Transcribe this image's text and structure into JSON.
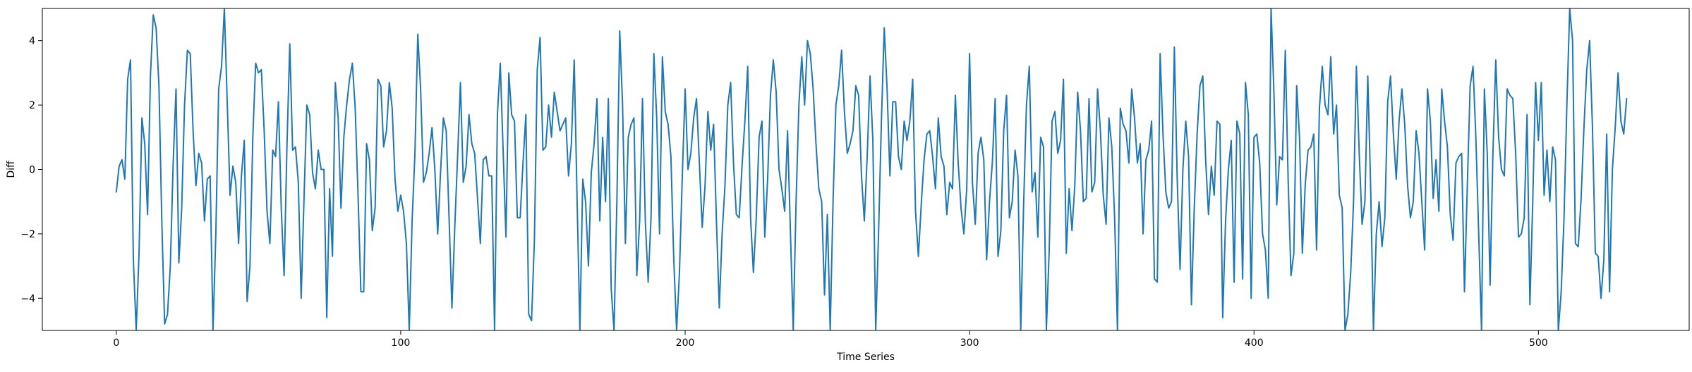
{
  "chart_data": {
    "type": "line",
    "title": "",
    "xlabel": "Time Series",
    "ylabel": "Diff",
    "xlim": [
      -26,
      553
    ],
    "ylim": [
      -5,
      5
    ],
    "xticks": [
      0,
      100,
      200,
      300,
      400,
      500
    ],
    "xtick_labels": [
      "0",
      "100",
      "200",
      "300",
      "400",
      "500"
    ],
    "yticks": [
      -4,
      -2,
      0,
      2,
      4
    ],
    "ytick_labels": [
      "−4",
      "−2",
      "0",
      "2",
      "4"
    ],
    "grid": false,
    "legend": "none",
    "series": [
      {
        "color": "#1f77b4",
        "x_start": 0,
        "x_step": 1,
        "values": [
          -0.7,
          0.1,
          0.3,
          -0.3,
          2.8,
          3.4,
          -2.8,
          -5.0,
          -2.6,
          1.6,
          0.8,
          -1.4,
          2.9,
          4.8,
          4.4,
          2.6,
          -1.6,
          -4.8,
          -4.5,
          -3.0,
          0.2,
          2.5,
          -2.9,
          -1.2,
          2.0,
          3.7,
          3.6,
          1.2,
          -0.5,
          0.5,
          0.2,
          -1.6,
          -0.3,
          -0.2,
          -5.0,
          -2.0,
          2.5,
          3.2,
          5.0,
          2.1,
          -0.8,
          0.1,
          -0.4,
          -2.3,
          -0.2,
          0.9,
          -4.1,
          -3.0,
          1.0,
          3.3,
          3.0,
          3.1,
          1.2,
          -1.3,
          -2.3,
          0.6,
          0.4,
          2.1,
          -1.2,
          -3.3,
          0.7,
          3.9,
          0.6,
          0.7,
          -0.4,
          -4.0,
          -0.9,
          2.0,
          1.7,
          -0.1,
          -0.6,
          0.6,
          0.0,
          0.0,
          -4.6,
          -0.6,
          -2.7,
          2.7,
          1.6,
          -1.2,
          1.0,
          2.0,
          2.8,
          3.3,
          1.9,
          -0.8,
          -3.8,
          -3.8,
          0.8,
          0.3,
          -1.9,
          -1.2,
          2.8,
          2.6,
          0.7,
          1.2,
          2.7,
          1.9,
          -0.3,
          -1.3,
          -0.8,
          -1.3,
          -2.3,
          -5.0,
          -1.6,
          0.5,
          4.2,
          2.5,
          -0.4,
          -0.1,
          0.5,
          1.3,
          0.0,
          -2.0,
          -0.1,
          1.6,
          1.2,
          -1.5,
          -4.3,
          -1.8,
          0.4,
          2.7,
          -0.4,
          0.1,
          1.7,
          0.8,
          0.5,
          -0.9,
          -2.3,
          0.3,
          0.4,
          -0.2,
          -0.2,
          -5.0,
          1.7,
          3.3,
          0.6,
          -2.1,
          3.0,
          1.7,
          1.5,
          -1.5,
          -1.5,
          0.2,
          1.7,
          -4.5,
          -4.7,
          -2.2,
          3.1,
          4.1,
          0.6,
          0.7,
          2.0,
          1.0,
          2.4,
          1.8,
          1.2,
          1.4,
          1.6,
          -0.2,
          0.8,
          3.4,
          -0.9,
          -5.0,
          -0.3,
          -1.0,
          -3.0,
          -0.1,
          0.8,
          2.2,
          -1.6,
          1.0,
          -1.0,
          2.2,
          -3.7,
          -5.0,
          -1.0,
          4.3,
          2.0,
          -2.3,
          1.0,
          1.4,
          1.6,
          -3.3,
          -1.6,
          2.2,
          -1.6,
          -3.5,
          -1.5,
          3.6,
          1.6,
          -2.0,
          3.5,
          1.8,
          1.4,
          0.4,
          -2.8,
          -5.0,
          -3.2,
          -0.2,
          2.5,
          0.0,
          0.5,
          1.6,
          2.2,
          0.2,
          -1.8,
          -0.5,
          1.8,
          0.6,
          1.4,
          -1.6,
          -4.3,
          -2.0,
          -0.5,
          2.0,
          2.7,
          0.2,
          -1.4,
          -1.5,
          0.1,
          1.5,
          3.2,
          -1.5,
          -3.2,
          -1.5,
          1.0,
          1.5,
          -2.1,
          -0.3,
          2.3,
          3.4,
          2.4,
          0.0,
          -0.6,
          -1.3,
          1.2,
          -1.9,
          -5.0,
          -1.0,
          2.0,
          3.5,
          2.0,
          4.0,
          3.6,
          2.5,
          0.8,
          -0.6,
          -1.0,
          -3.9,
          -1.4,
          -5.0,
          -1.0,
          2.0,
          2.6,
          3.7,
          1.8,
          0.5,
          0.8,
          1.2,
          2.6,
          2.3,
          -0.2,
          -1.6,
          0.4,
          2.9,
          0.9,
          -5.0,
          -2.0,
          1.5,
          4.4,
          2.5,
          -0.2,
          2.1,
          2.1,
          0.4,
          0.0,
          1.5,
          0.9,
          1.5,
          2.8,
          -1.3,
          -2.7,
          -1.1,
          0.3,
          1.1,
          1.2,
          0.4,
          -0.6,
          1.6,
          0.4,
          0.1,
          -1.4,
          -0.4,
          -0.6,
          2.3,
          0.2,
          -1.2,
          -2.0,
          -0.6,
          3.6,
          -0.4,
          -1.7,
          0.5,
          1.0,
          0.3,
          -2.8,
          -1.0,
          0.2,
          2.2,
          -2.7,
          -1.9,
          1.2,
          2.3,
          -1.5,
          -1.0,
          0.6,
          -0.2,
          -5.0,
          -1.1,
          2.0,
          3.2,
          -0.7,
          -0.1,
          -2.1,
          1.0,
          0.7,
          -5.0,
          -2.5,
          1.5,
          1.8,
          0.5,
          0.9,
          2.8,
          -2.6,
          -0.6,
          -1.9,
          -0.5,
          2.4,
          1.2,
          -1.0,
          -0.9,
          2.2,
          -0.7,
          -0.4,
          2.5,
          1.2,
          -0.8,
          -1.7,
          1.6,
          0.7,
          -1.5,
          -5.0,
          1.9,
          1.4,
          1.2,
          0.2,
          2.5,
          1.6,
          0.2,
          0.8,
          -2.0,
          0.3,
          0.6,
          1.5,
          -3.4,
          -3.5,
          3.6,
          1.1,
          -0.7,
          -1.2,
          -1.0,
          3.8,
          -0.3,
          -3.1,
          0.0,
          1.5,
          0.4,
          -4.2,
          -1.2,
          1.1,
          2.6,
          2.9,
          0.3,
          -1.4,
          0.1,
          -0.8,
          1.5,
          1.4,
          -4.6,
          -1.6,
          0.0,
          0.9,
          -3.5,
          1.5,
          1.1,
          -3.4,
          2.7,
          1.7,
          -4.0,
          1.0,
          1.1,
          0.2,
          -2.0,
          -2.5,
          -4.0,
          5.0,
          2.4,
          -1.1,
          0.4,
          0.3,
          3.7,
          -0.3,
          -3.3,
          -2.6,
          2.6,
          1.0,
          -2.6,
          -0.5,
          0.6,
          0.7,
          1.1,
          -2.5,
          1.9,
          3.2,
          2.0,
          1.7,
          3.5,
          1.1,
          2.0,
          -0.8,
          -1.2,
          -5.0,
          -4.5,
          -3.2,
          -1.0,
          3.2,
          0.5,
          -1.7,
          -1.0,
          2.9,
          -0.5,
          -5.0,
          -2.0,
          -1.0,
          -2.4,
          -1.5,
          2.1,
          2.9,
          1.1,
          -0.3,
          1.5,
          2.5,
          1.4,
          -0.5,
          -1.5,
          -1.0,
          1.2,
          0.5,
          -1.0,
          -2.5,
          2.5,
          1.5,
          -0.9,
          0.3,
          -1.3,
          2.5,
          1.5,
          0.7,
          -1.4,
          -2.2,
          0.2,
          0.4,
          0.5,
          -3.8,
          -0.5,
          2.6,
          3.2,
          1.0,
          -2.0,
          -5.0,
          2.5,
          0.5,
          -3.6,
          0.5,
          3.4,
          1.0,
          0.0,
          -0.2,
          2.5,
          2.3,
          2.2,
          0.5,
          -2.1,
          -2.0,
          -1.5,
          1.7,
          -4.2,
          -1.0,
          2.7,
          0.9,
          2.7,
          -0.8,
          0.6,
          -1.0,
          0.7,
          0.3,
          -5.0,
          -3.8,
          -1.5,
          2.0,
          5.0,
          4.0,
          -2.3,
          -2.4,
          -0.9,
          1.3,
          3.1,
          4.0,
          1.3,
          -2.6,
          -2.7,
          -4.0,
          -2.8,
          1.1,
          -3.8,
          0.0,
          1.3,
          3.0,
          1.5,
          1.1,
          2.2
        ]
      }
    ]
  }
}
